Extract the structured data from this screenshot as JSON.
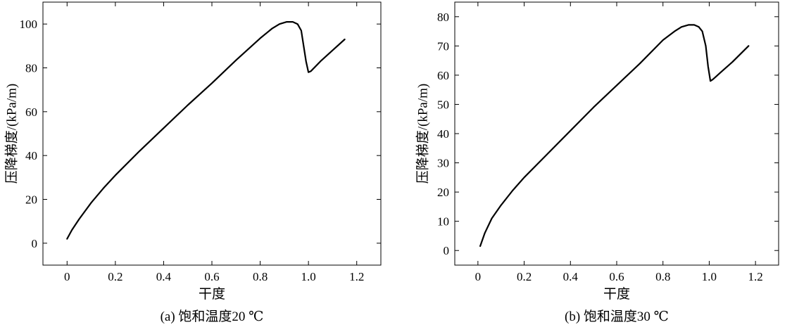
{
  "chart_data": [
    {
      "type": "line",
      "caption": "(a) 饱和温度20 ℃",
      "xlabel": "干度",
      "ylabel": "压降梯度/(kPa/m)",
      "xlim": [
        -0.1,
        1.3
      ],
      "ylim": [
        -10,
        110
      ],
      "xticks": [
        0,
        0.2,
        0.4,
        0.6,
        0.8,
        1.0,
        1.2
      ],
      "xtick_labels": [
        "0",
        "0.2",
        "0.4",
        "0.6",
        "0.8",
        "1.0",
        "1.2"
      ],
      "yticks": [
        0,
        20,
        40,
        60,
        80,
        100
      ],
      "ytick_labels": [
        "0",
        "20",
        "40",
        "60",
        "80",
        "100"
      ],
      "grid": false,
      "series": [
        {
          "x": [
            0.0,
            0.02,
            0.05,
            0.1,
            0.15,
            0.2,
            0.3,
            0.4,
            0.5,
            0.6,
            0.7,
            0.8,
            0.85,
            0.88,
            0.91,
            0.935,
            0.955,
            0.97,
            0.98,
            0.99,
            1.0,
            1.01,
            1.05,
            1.1,
            1.15
          ],
          "y": [
            2,
            6,
            11,
            18.5,
            25,
            31,
            42,
            52.5,
            63,
            73,
            83.5,
            93.5,
            98,
            100,
            101,
            101,
            100,
            97,
            90,
            83,
            78,
            78.5,
            83,
            88,
            93
          ]
        }
      ]
    },
    {
      "type": "line",
      "caption": "(b) 饱和温度30 ℃",
      "xlabel": "干度",
      "ylabel": "压降梯度/(kPa/m)",
      "xlim": [
        -0.1,
        1.3
      ],
      "ylim": [
        -5,
        85
      ],
      "xticks": [
        0,
        0.2,
        0.4,
        0.6,
        0.8,
        1.0,
        1.2
      ],
      "xtick_labels": [
        "0",
        "0.2",
        "0.4",
        "0.6",
        "0.8",
        "1.0",
        "1.2"
      ],
      "yticks": [
        0,
        10,
        20,
        30,
        40,
        50,
        60,
        70,
        80
      ],
      "ytick_labels": [
        "0",
        "10",
        "20",
        "30",
        "40",
        "50",
        "60",
        "70",
        "80"
      ],
      "grid": false,
      "series": [
        {
          "x": [
            0.01,
            0.03,
            0.06,
            0.1,
            0.15,
            0.2,
            0.3,
            0.4,
            0.5,
            0.6,
            0.7,
            0.8,
            0.85,
            0.88,
            0.91,
            0.935,
            0.955,
            0.97,
            0.985,
            0.995,
            1.005,
            1.015,
            1.05,
            1.1,
            1.17
          ],
          "y": [
            1.5,
            6,
            11,
            15.5,
            20.5,
            25,
            33,
            41,
            49,
            56.5,
            64,
            72,
            75,
            76.5,
            77.2,
            77.2,
            76.5,
            75,
            70,
            63,
            58,
            58.5,
            61,
            64.5,
            70
          ]
        }
      ]
    }
  ]
}
